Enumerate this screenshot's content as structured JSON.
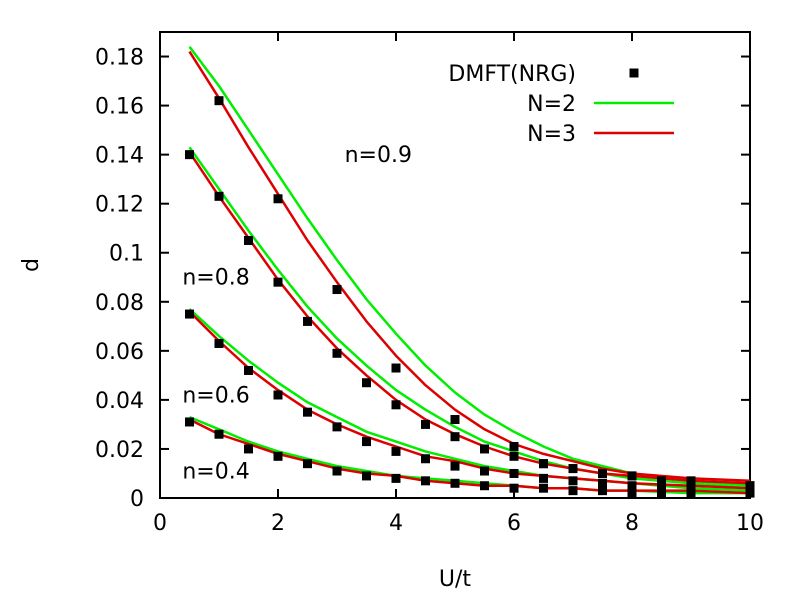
{
  "chart_data": {
    "type": "line",
    "title": "",
    "xlabel": "U/t",
    "ylabel": "d",
    "xlim": [
      0,
      10
    ],
    "ylim": [
      0,
      0.19
    ],
    "xticks": [
      0,
      2,
      4,
      6,
      8,
      10
    ],
    "xtick_labels": [
      "0",
      "2",
      "4",
      "6",
      "8",
      "10"
    ],
    "yticks": [
      0,
      0.02,
      0.04,
      0.06,
      0.08,
      0.1,
      0.12,
      0.14,
      0.16,
      0.18
    ],
    "ytick_labels": [
      "0",
      "0.02",
      "0.04",
      "0.06",
      "0.08",
      "0.1",
      "0.12",
      "0.14",
      "0.16",
      "0.18"
    ],
    "grid": false,
    "legend_position": "top-right",
    "legend": [
      {
        "label": "DMFT(NRG)",
        "style": "square-marker",
        "color": "#000000"
      },
      {
        "label": "N=2",
        "style": "line",
        "color": "#00ee00"
      },
      {
        "label": "N=3",
        "style": "line",
        "color": "#dd0000"
      }
    ],
    "annotations": [
      {
        "text": "n=0.9",
        "x": 3.7,
        "y": 0.137
      },
      {
        "text": "n=0.8",
        "x": 0.95,
        "y": 0.087
      },
      {
        "text": "n=0.6",
        "x": 0.95,
        "y": 0.039
      },
      {
        "text": "n=0.4",
        "x": 0.95,
        "y": 0.008
      }
    ],
    "series": [
      {
        "name": "DMFT(NRG) n=0.9",
        "kind": "markers",
        "color": "#000000",
        "x": [
          1,
          2,
          3,
          4,
          5,
          6,
          6.5,
          7,
          7.5,
          8,
          8.5,
          9,
          10
        ],
        "y": [
          0.162,
          0.122,
          0.085,
          0.053,
          0.032,
          0.021,
          0.014,
          0.012,
          0.01,
          0.009,
          0.007,
          0.007,
          0.005
        ]
      },
      {
        "name": "DMFT(NRG) n=0.8",
        "kind": "markers",
        "color": "#000000",
        "x": [
          0.5,
          1,
          1.5,
          2,
          2.5,
          3,
          3.5,
          4,
          4.5,
          5,
          5.5,
          6,
          6.5,
          7,
          7.5,
          8,
          8.5,
          9,
          10
        ],
        "y": [
          0.14,
          0.123,
          0.105,
          0.088,
          0.072,
          0.059,
          0.047,
          0.038,
          0.03,
          0.025,
          0.02,
          0.017,
          0.014,
          0.012,
          0.01,
          0.009,
          0.007,
          0.006,
          0.005
        ]
      },
      {
        "name": "DMFT(NRG) n=0.6",
        "kind": "markers",
        "color": "#000000",
        "x": [
          0.5,
          1,
          1.5,
          2,
          2.5,
          3,
          3.5,
          4,
          4.5,
          5,
          5.5,
          6,
          6.5,
          7,
          7.5,
          8,
          8.5,
          9,
          10
        ],
        "y": [
          0.075,
          0.063,
          0.052,
          0.042,
          0.035,
          0.029,
          0.023,
          0.019,
          0.016,
          0.013,
          0.011,
          0.01,
          0.008,
          0.007,
          0.006,
          0.005,
          0.004,
          0.004,
          0.003
        ]
      },
      {
        "name": "DMFT(NRG) n=0.4",
        "kind": "markers",
        "color": "#000000",
        "x": [
          0.5,
          1,
          1.5,
          2,
          2.5,
          3,
          3.5,
          4,
          4.5,
          5,
          5.5,
          6,
          6.5,
          7,
          7.5,
          8,
          8.5,
          9,
          10
        ],
        "y": [
          0.031,
          0.026,
          0.02,
          0.017,
          0.014,
          0.011,
          0.009,
          0.008,
          0.007,
          0.006,
          0.005,
          0.004,
          0.004,
          0.003,
          0.003,
          0.002,
          0.002,
          0.002,
          0.002
        ]
      },
      {
        "name": "N=2 n=0.9",
        "kind": "line",
        "color": "#00ee00",
        "x": [
          0.5,
          1,
          1.5,
          2,
          2.5,
          3,
          3.5,
          4,
          4.5,
          5,
          5.5,
          6,
          6.5,
          7,
          7.5,
          8,
          9,
          10
        ],
        "y": [
          0.184,
          0.168,
          0.15,
          0.132,
          0.114,
          0.097,
          0.081,
          0.067,
          0.054,
          0.043,
          0.034,
          0.027,
          0.021,
          0.016,
          0.013,
          0.01,
          0.007,
          0.005
        ]
      },
      {
        "name": "N=3 n=0.9",
        "kind": "line",
        "color": "#dd0000",
        "x": [
          0.5,
          1,
          1.5,
          2,
          2.5,
          3,
          3.5,
          4,
          4.5,
          5,
          5.5,
          6,
          6.5,
          7,
          7.5,
          8,
          9,
          10
        ],
        "y": [
          0.182,
          0.163,
          0.143,
          0.124,
          0.105,
          0.088,
          0.072,
          0.058,
          0.046,
          0.036,
          0.028,
          0.022,
          0.018,
          0.015,
          0.012,
          0.01,
          0.008,
          0.007
        ]
      },
      {
        "name": "N=2 n=0.8",
        "kind": "line",
        "color": "#00ee00",
        "x": [
          0.5,
          1,
          1.5,
          2,
          2.5,
          3,
          3.5,
          4,
          4.5,
          5,
          5.5,
          6,
          6.5,
          7,
          7.5,
          8,
          9,
          10
        ],
        "y": [
          0.143,
          0.126,
          0.109,
          0.093,
          0.078,
          0.065,
          0.054,
          0.044,
          0.036,
          0.029,
          0.023,
          0.019,
          0.015,
          0.012,
          0.01,
          0.008,
          0.006,
          0.004
        ]
      },
      {
        "name": "N=3 n=0.8",
        "kind": "line",
        "color": "#dd0000",
        "x": [
          0.5,
          1,
          1.5,
          2,
          2.5,
          3,
          3.5,
          4,
          4.5,
          5,
          5.5,
          6,
          6.5,
          7,
          7.5,
          8,
          9,
          10
        ],
        "y": [
          0.141,
          0.123,
          0.106,
          0.089,
          0.074,
          0.061,
          0.05,
          0.04,
          0.032,
          0.026,
          0.021,
          0.017,
          0.014,
          0.012,
          0.01,
          0.009,
          0.007,
          0.006
        ]
      },
      {
        "name": "N=2 n=0.6",
        "kind": "line",
        "color": "#00ee00",
        "x": [
          0.5,
          1,
          1.5,
          2,
          2.5,
          3,
          3.5,
          4,
          4.5,
          5,
          5.5,
          6,
          6.5,
          7,
          7.5,
          8,
          9,
          10
        ],
        "y": [
          0.077,
          0.066,
          0.056,
          0.047,
          0.039,
          0.033,
          0.027,
          0.023,
          0.019,
          0.016,
          0.013,
          0.011,
          0.009,
          0.008,
          0.007,
          0.006,
          0.004,
          0.003
        ]
      },
      {
        "name": "N=3 n=0.6",
        "kind": "line",
        "color": "#dd0000",
        "x": [
          0.5,
          1,
          1.5,
          2,
          2.5,
          3,
          3.5,
          4,
          4.5,
          5,
          5.5,
          6,
          6.5,
          7,
          7.5,
          8,
          9,
          10
        ],
        "y": [
          0.076,
          0.064,
          0.053,
          0.044,
          0.036,
          0.03,
          0.025,
          0.021,
          0.017,
          0.015,
          0.012,
          0.01,
          0.009,
          0.008,
          0.007,
          0.006,
          0.005,
          0.004
        ]
      },
      {
        "name": "N=2 n=0.4",
        "kind": "line",
        "color": "#00ee00",
        "x": [
          0.5,
          1,
          1.5,
          2,
          2.5,
          3,
          3.5,
          4,
          4.5,
          5,
          5.5,
          6,
          6.5,
          7,
          7.5,
          8,
          9,
          10
        ],
        "y": [
          0.033,
          0.028,
          0.023,
          0.019,
          0.016,
          0.013,
          0.011,
          0.009,
          0.008,
          0.007,
          0.006,
          0.005,
          0.004,
          0.004,
          0.003,
          0.003,
          0.002,
          0.002
        ]
      },
      {
        "name": "N=3 n=0.4",
        "kind": "line",
        "color": "#dd0000",
        "x": [
          0.5,
          1,
          1.5,
          2,
          2.5,
          3,
          3.5,
          4,
          4.5,
          5,
          5.5,
          6,
          6.5,
          7,
          7.5,
          8,
          9,
          10
        ],
        "y": [
          0.032,
          0.026,
          0.022,
          0.018,
          0.015,
          0.012,
          0.01,
          0.009,
          0.007,
          0.006,
          0.005,
          0.005,
          0.004,
          0.004,
          0.003,
          0.003,
          0.003,
          0.002
        ]
      }
    ]
  }
}
